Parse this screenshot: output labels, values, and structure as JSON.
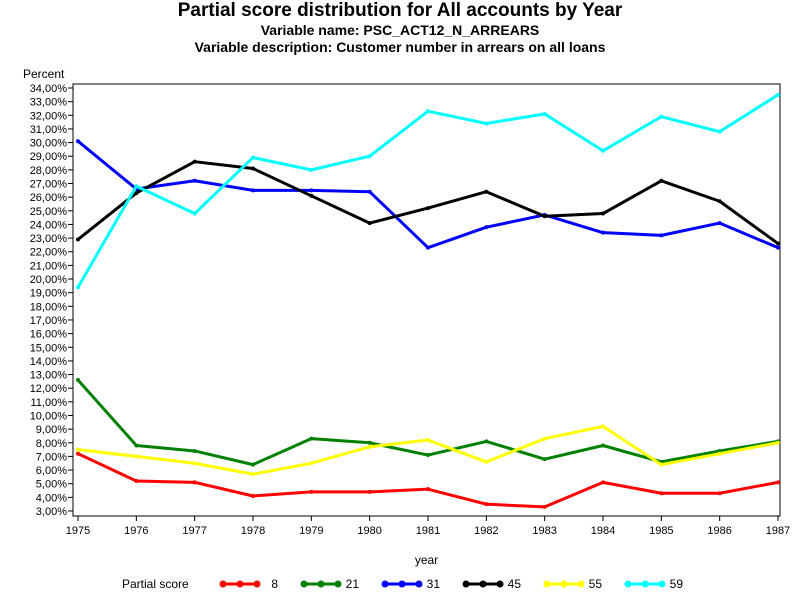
{
  "title": "Partial score distribution for All accounts by Year",
  "subtitle1": "Variable name: PSC_ACT12_N_ARREARS",
  "subtitle2": "Variable description: Customer number in arrears on all loans",
  "chart_data": {
    "type": "line",
    "title": "Partial score distribution for All accounts by Year",
    "ylabel": "Percent",
    "xlabel": "year",
    "ylim": [
      3,
      34
    ],
    "yticks": [
      "3,00%",
      "4,00%",
      "5,00%",
      "6,00%",
      "7,00%",
      "8,00%",
      "9,00%",
      "10,00%",
      "11,00%",
      "12,00%",
      "13,00%",
      "14,00%",
      "15,00%",
      "16,00%",
      "17,00%",
      "18,00%",
      "19,00%",
      "20,00%",
      "21,00%",
      "22,00%",
      "23,00%",
      "24,00%",
      "25,00%",
      "26,00%",
      "27,00%",
      "28,00%",
      "29,00%",
      "30,00%",
      "31,00%",
      "32,00%",
      "33,00%",
      "34,00%"
    ],
    "x": [
      "1975",
      "1976",
      "1977",
      "1978",
      "1979",
      "1980",
      "1981",
      "1982",
      "1983",
      "1984",
      "1985",
      "1986",
      "1987"
    ],
    "legend_title": "Partial score",
    "legend_position": "bottom",
    "grid": false,
    "series": [
      {
        "name": "8",
        "color": "#ff0000",
        "values": [
          7.2,
          5.2,
          5.1,
          4.1,
          4.4,
          4.4,
          4.6,
          3.5,
          3.3,
          5.1,
          4.3,
          4.3,
          5.1
        ]
      },
      {
        "name": "21",
        "color": "#008000",
        "values": [
          12.6,
          7.8,
          7.4,
          6.4,
          8.3,
          8.0,
          7.1,
          8.1,
          6.8,
          7.8,
          6.6,
          7.4,
          8.1
        ]
      },
      {
        "name": "31",
        "color": "#0000ff",
        "values": [
          30.1,
          26.6,
          27.2,
          26.5,
          26.5,
          26.4,
          22.3,
          23.8,
          24.7,
          23.4,
          23.2,
          24.1,
          22.3
        ]
      },
      {
        "name": "45",
        "color": "#000000",
        "values": [
          22.9,
          26.3,
          28.6,
          28.1,
          26.1,
          24.1,
          25.2,
          26.4,
          24.6,
          24.8,
          27.2,
          25.7,
          22.6
        ]
      },
      {
        "name": "55",
        "color": "#ffff00",
        "values": [
          7.5,
          7.0,
          6.5,
          5.7,
          6.5,
          7.7,
          8.2,
          6.6,
          8.3,
          9.2,
          6.4,
          7.2,
          8.0
        ]
      },
      {
        "name": "59",
        "color": "#00ffff",
        "values": [
          19.4,
          26.8,
          24.8,
          28.9,
          28.0,
          29.0,
          32.3,
          31.4,
          32.1,
          29.4,
          31.9,
          30.8,
          33.5
        ]
      }
    ]
  }
}
